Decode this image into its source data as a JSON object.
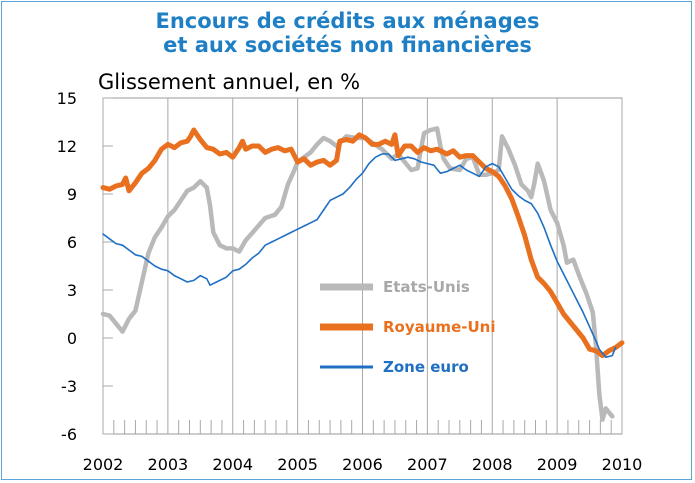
{
  "title_line1": "Encours de crédits aux ménages",
  "title_line2": "et aux sociétés non financières",
  "colors": {
    "title": "#1f7fc4",
    "us": "#b9b9b9",
    "uk": "#e8701f",
    "euro": "#1f6fc4"
  },
  "chart_data": {
    "type": "line",
    "title": "Encours de crédits aux ménages et aux sociétés non financières",
    "ylabel": "Glissement annuel, en %",
    "xlabel": "",
    "ylim": [
      -6,
      15
    ],
    "yticks": [
      15,
      12,
      9,
      6,
      3,
      0,
      -3,
      -6
    ],
    "xlim": [
      2002,
      2010
    ],
    "xticks": [
      2002,
      2003,
      2004,
      2005,
      2006,
      2007,
      2008,
      2009,
      2010
    ],
    "legend_position": "center-right",
    "series": [
      {
        "name": "Etats-Unis",
        "color": "#b9b9b9",
        "points": [
          [
            2002.0,
            1.5
          ],
          [
            2002.1,
            1.4
          ],
          [
            2002.2,
            0.9
          ],
          [
            2002.3,
            0.4
          ],
          [
            2002.4,
            1.2
          ],
          [
            2002.5,
            1.7
          ],
          [
            2002.6,
            3.5
          ],
          [
            2002.7,
            5.3
          ],
          [
            2002.8,
            6.3
          ],
          [
            2002.9,
            6.9
          ],
          [
            2003.0,
            7.6
          ],
          [
            2003.1,
            8.0
          ],
          [
            2003.2,
            8.6
          ],
          [
            2003.3,
            9.2
          ],
          [
            2003.4,
            9.4
          ],
          [
            2003.5,
            9.8
          ],
          [
            2003.6,
            9.4
          ],
          [
            2003.65,
            8.3
          ],
          [
            2003.7,
            6.6
          ],
          [
            2003.8,
            5.8
          ],
          [
            2003.9,
            5.6
          ],
          [
            2004.0,
            5.6
          ],
          [
            2004.1,
            5.4
          ],
          [
            2004.2,
            6.1
          ],
          [
            2004.35,
            6.8
          ],
          [
            2004.5,
            7.5
          ],
          [
            2004.65,
            7.7
          ],
          [
            2004.75,
            8.2
          ],
          [
            2004.85,
            9.6
          ],
          [
            2004.95,
            10.5
          ],
          [
            2005.0,
            11.0
          ],
          [
            2005.1,
            11.3
          ],
          [
            2005.2,
            11.6
          ],
          [
            2005.3,
            12.1
          ],
          [
            2005.4,
            12.5
          ],
          [
            2005.5,
            12.3
          ],
          [
            2005.6,
            12.0
          ],
          [
            2005.75,
            12.6
          ],
          [
            2005.9,
            12.5
          ],
          [
            2006.05,
            12.5
          ],
          [
            2006.15,
            12.2
          ],
          [
            2006.3,
            11.8
          ],
          [
            2006.45,
            11.2
          ],
          [
            2006.55,
            11.5
          ],
          [
            2006.65,
            11.0
          ],
          [
            2006.75,
            10.5
          ],
          [
            2006.85,
            10.6
          ],
          [
            2006.9,
            11.8
          ],
          [
            2006.95,
            12.8
          ],
          [
            2007.05,
            13.0
          ],
          [
            2007.15,
            13.1
          ],
          [
            2007.2,
            12.0
          ],
          [
            2007.25,
            11.2
          ],
          [
            2007.35,
            10.6
          ],
          [
            2007.5,
            10.5
          ],
          [
            2007.6,
            11.2
          ],
          [
            2007.7,
            11.3
          ],
          [
            2007.8,
            10.2
          ],
          [
            2007.9,
            10.2
          ],
          [
            2008.0,
            10.3
          ],
          [
            2008.1,
            10.5
          ],
          [
            2008.15,
            12.6
          ],
          [
            2008.25,
            11.8
          ],
          [
            2008.35,
            10.8
          ],
          [
            2008.45,
            9.6
          ],
          [
            2008.55,
            9.2
          ],
          [
            2008.6,
            8.8
          ],
          [
            2008.65,
            9.7
          ],
          [
            2008.7,
            10.9
          ],
          [
            2008.8,
            9.8
          ],
          [
            2008.9,
            8.0
          ],
          [
            2009.0,
            7.2
          ],
          [
            2009.1,
            5.8
          ],
          [
            2009.15,
            4.7
          ],
          [
            2009.25,
            4.9
          ],
          [
            2009.35,
            3.8
          ],
          [
            2009.45,
            2.8
          ],
          [
            2009.55,
            1.6
          ],
          [
            2009.6,
            -0.5
          ],
          [
            2009.65,
            -3.5
          ],
          [
            2009.7,
            -5.1
          ],
          [
            2009.75,
            -4.4
          ],
          [
            2009.85,
            -4.9
          ]
        ]
      },
      {
        "name": "Royaume-Uni",
        "color": "#e8701f",
        "points": [
          [
            2002.0,
            9.4
          ],
          [
            2002.1,
            9.3
          ],
          [
            2002.2,
            9.5
          ],
          [
            2002.3,
            9.6
          ],
          [
            2002.35,
            10.0
          ],
          [
            2002.4,
            9.2
          ],
          [
            2002.5,
            9.7
          ],
          [
            2002.6,
            10.3
          ],
          [
            2002.7,
            10.6
          ],
          [
            2002.8,
            11.1
          ],
          [
            2002.9,
            11.8
          ],
          [
            2003.0,
            12.1
          ],
          [
            2003.1,
            11.9
          ],
          [
            2003.2,
            12.2
          ],
          [
            2003.3,
            12.3
          ],
          [
            2003.35,
            12.6
          ],
          [
            2003.4,
            13.0
          ],
          [
            2003.5,
            12.4
          ],
          [
            2003.6,
            11.9
          ],
          [
            2003.7,
            11.8
          ],
          [
            2003.8,
            11.5
          ],
          [
            2003.9,
            11.6
          ],
          [
            2004.0,
            11.3
          ],
          [
            2004.1,
            11.9
          ],
          [
            2004.15,
            12.3
          ],
          [
            2004.2,
            11.8
          ],
          [
            2004.3,
            12.0
          ],
          [
            2004.4,
            12.0
          ],
          [
            2004.5,
            11.6
          ],
          [
            2004.6,
            11.8
          ],
          [
            2004.7,
            11.9
          ],
          [
            2004.8,
            11.7
          ],
          [
            2004.9,
            11.8
          ],
          [
            2005.0,
            11.0
          ],
          [
            2005.1,
            11.2
          ],
          [
            2005.2,
            10.8
          ],
          [
            2005.3,
            11.0
          ],
          [
            2005.4,
            11.1
          ],
          [
            2005.5,
            10.8
          ],
          [
            2005.6,
            11.1
          ],
          [
            2005.65,
            12.3
          ],
          [
            2005.75,
            12.4
          ],
          [
            2005.85,
            12.3
          ],
          [
            2005.95,
            12.7
          ],
          [
            2006.05,
            12.5
          ],
          [
            2006.15,
            12.1
          ],
          [
            2006.25,
            12.1
          ],
          [
            2006.35,
            12.3
          ],
          [
            2006.45,
            12.1
          ],
          [
            2006.5,
            12.7
          ],
          [
            2006.55,
            11.4
          ],
          [
            2006.65,
            12.0
          ],
          [
            2006.75,
            12.0
          ],
          [
            2006.85,
            11.6
          ],
          [
            2006.95,
            11.9
          ],
          [
            2007.05,
            11.7
          ],
          [
            2007.15,
            11.8
          ],
          [
            2007.3,
            11.5
          ],
          [
            2007.4,
            11.7
          ],
          [
            2007.5,
            11.3
          ],
          [
            2007.6,
            11.4
          ],
          [
            2007.7,
            11.4
          ],
          [
            2007.8,
            11.0
          ],
          [
            2007.9,
            10.6
          ],
          [
            2008.0,
            10.4
          ],
          [
            2008.1,
            10.1
          ],
          [
            2008.2,
            9.5
          ],
          [
            2008.3,
            8.7
          ],
          [
            2008.4,
            7.6
          ],
          [
            2008.5,
            6.4
          ],
          [
            2008.6,
            4.9
          ],
          [
            2008.7,
            3.8
          ],
          [
            2008.8,
            3.4
          ],
          [
            2008.9,
            2.9
          ],
          [
            2009.0,
            2.2
          ],
          [
            2009.1,
            1.5
          ],
          [
            2009.2,
            1.0
          ],
          [
            2009.3,
            0.5
          ],
          [
            2009.4,
            0.0
          ],
          [
            2009.5,
            -0.7
          ],
          [
            2009.6,
            -0.8
          ],
          [
            2009.7,
            -1.1
          ],
          [
            2009.8,
            -0.8
          ],
          [
            2009.9,
            -0.6
          ],
          [
            2010.0,
            -0.3
          ]
        ]
      },
      {
        "name": "Zone euro",
        "color": "#1f6fc4",
        "points": [
          [
            2002.0,
            6.5
          ],
          [
            2002.1,
            6.2
          ],
          [
            2002.2,
            5.9
          ],
          [
            2002.3,
            5.8
          ],
          [
            2002.4,
            5.5
          ],
          [
            2002.5,
            5.2
          ],
          [
            2002.6,
            5.1
          ],
          [
            2002.7,
            4.8
          ],
          [
            2002.8,
            4.5
          ],
          [
            2002.9,
            4.3
          ],
          [
            2003.0,
            4.2
          ],
          [
            2003.1,
            3.9
          ],
          [
            2003.2,
            3.7
          ],
          [
            2003.3,
            3.5
          ],
          [
            2003.4,
            3.6
          ],
          [
            2003.5,
            3.9
          ],
          [
            2003.6,
            3.7
          ],
          [
            2003.65,
            3.3
          ],
          [
            2003.75,
            3.5
          ],
          [
            2003.9,
            3.8
          ],
          [
            2004.0,
            4.2
          ],
          [
            2004.1,
            4.3
          ],
          [
            2004.2,
            4.6
          ],
          [
            2004.3,
            5.0
          ],
          [
            2004.4,
            5.3
          ],
          [
            2004.5,
            5.8
          ],
          [
            2004.6,
            6.0
          ],
          [
            2004.7,
            6.2
          ],
          [
            2004.8,
            6.4
          ],
          [
            2004.9,
            6.6
          ],
          [
            2005.0,
            6.8
          ],
          [
            2005.1,
            7.0
          ],
          [
            2005.2,
            7.2
          ],
          [
            2005.3,
            7.4
          ],
          [
            2005.4,
            8.0
          ],
          [
            2005.5,
            8.6
          ],
          [
            2005.6,
            8.8
          ],
          [
            2005.7,
            9.0
          ],
          [
            2005.8,
            9.4
          ],
          [
            2005.9,
            9.9
          ],
          [
            2006.0,
            10.3
          ],
          [
            2006.1,
            10.9
          ],
          [
            2006.2,
            11.3
          ],
          [
            2006.3,
            11.5
          ],
          [
            2006.4,
            11.5
          ],
          [
            2006.5,
            11.1
          ],
          [
            2006.6,
            11.2
          ],
          [
            2006.7,
            11.3
          ],
          [
            2006.8,
            11.2
          ],
          [
            2006.9,
            11.0
          ],
          [
            2007.0,
            10.9
          ],
          [
            2007.1,
            10.8
          ],
          [
            2007.2,
            10.3
          ],
          [
            2007.3,
            10.4
          ],
          [
            2007.4,
            10.6
          ],
          [
            2007.5,
            10.8
          ],
          [
            2007.6,
            10.5
          ],
          [
            2007.7,
            10.3
          ],
          [
            2007.8,
            10.1
          ],
          [
            2007.9,
            10.7
          ],
          [
            2008.0,
            10.9
          ],
          [
            2008.1,
            10.7
          ],
          [
            2008.2,
            10.0
          ],
          [
            2008.3,
            9.3
          ],
          [
            2008.4,
            8.9
          ],
          [
            2008.5,
            8.6
          ],
          [
            2008.6,
            8.4
          ],
          [
            2008.7,
            7.8
          ],
          [
            2008.8,
            6.9
          ],
          [
            2008.9,
            5.8
          ],
          [
            2009.0,
            4.8
          ],
          [
            2009.1,
            4.0
          ],
          [
            2009.2,
            3.2
          ],
          [
            2009.3,
            2.4
          ],
          [
            2009.4,
            1.6
          ],
          [
            2009.5,
            0.7
          ],
          [
            2009.6,
            -0.2
          ],
          [
            2009.65,
            -0.7
          ],
          [
            2009.75,
            -1.2
          ],
          [
            2009.85,
            -1.1
          ],
          [
            2009.9,
            -0.6
          ]
        ]
      }
    ]
  }
}
